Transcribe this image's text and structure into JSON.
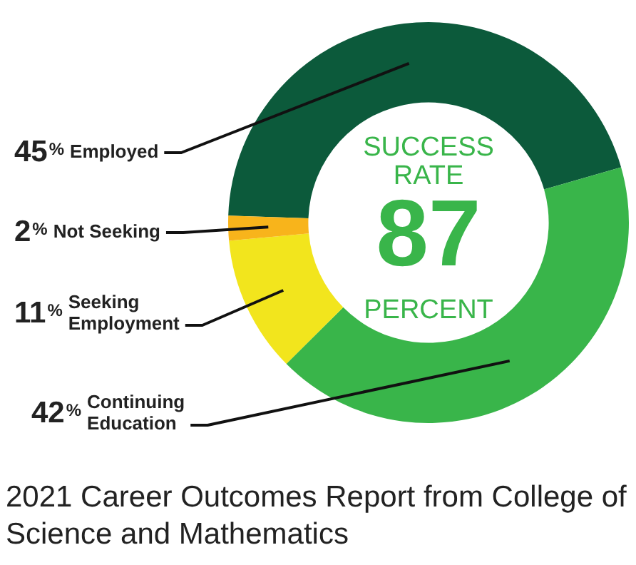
{
  "chart_data": {
    "type": "donut",
    "title": "2021 Career Outcomes Report from College of Science and Mathematics",
    "categories": [
      "Employed",
      "Continuing Education",
      "Seeking Employment",
      "Not Seeking"
    ],
    "values": [
      45,
      42,
      11,
      2
    ],
    "colors": [
      "#0c5a3b",
      "#39b54a",
      "#f2e51d",
      "#f8b41b"
    ],
    "value_labels": [
      "45%",
      "42%",
      "11%",
      "2%"
    ],
    "annotations": [
      "SUCCESS RATE",
      "87",
      "PERCENT"
    ],
    "legend": false
  }
}
